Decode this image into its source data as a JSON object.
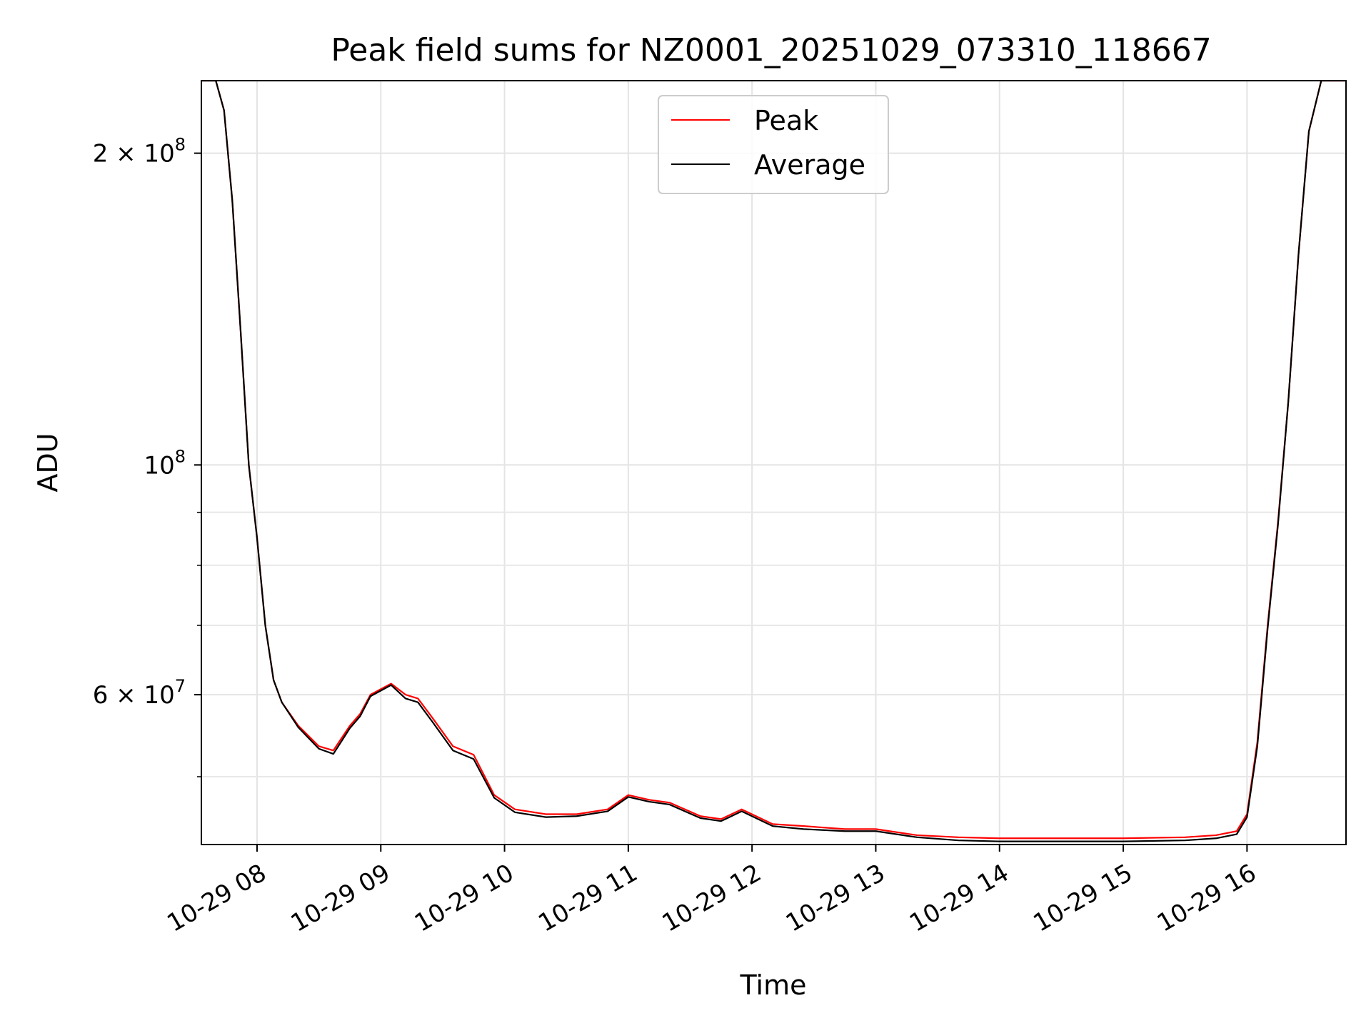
{
  "chart_data": {
    "type": "line",
    "title": "Peak field sums for NZ0001_20251029_073310_118667",
    "xlabel": "Time",
    "ylabel": "ADU",
    "yscale": "log",
    "xlim": [
      "2025-10-29 07:33",
      "2025-10-29 16:48"
    ],
    "ylim": [
      43000000,
      235000000
    ],
    "grid": true,
    "legend": "upper center",
    "x_ticks": [
      {
        "value": "2025-10-29 08:00",
        "label": "10-29 08"
      },
      {
        "value": "2025-10-29 09:00",
        "label": "10-29 09"
      },
      {
        "value": "2025-10-29 10:00",
        "label": "10-29 10"
      },
      {
        "value": "2025-10-29 11:00",
        "label": "10-29 11"
      },
      {
        "value": "2025-10-29 12:00",
        "label": "10-29 12"
      },
      {
        "value": "2025-10-29 13:00",
        "label": "10-29 13"
      },
      {
        "value": "2025-10-29 14:00",
        "label": "10-29 14"
      },
      {
        "value": "2025-10-29 15:00",
        "label": "10-29 15"
      },
      {
        "value": "2025-10-29 16:00",
        "label": "10-29 16"
      }
    ],
    "y_ticks": [
      {
        "value": 60000000,
        "label": "6 × 10",
        "exp": "7"
      },
      {
        "value": 100000000,
        "label": "10",
        "exp": "8"
      },
      {
        "value": 200000000,
        "label": "2 × 10",
        "exp": "8"
      }
    ],
    "y_minor_ticks": [
      50000000,
      70000000,
      80000000,
      90000000
    ],
    "x": [
      "2025-10-29 07:33",
      "2025-10-29 07:40",
      "2025-10-29 07:44",
      "2025-10-29 07:48",
      "2025-10-29 07:52",
      "2025-10-29 07:56",
      "2025-10-29 08:00",
      "2025-10-29 08:04",
      "2025-10-29 08:08",
      "2025-10-29 08:12",
      "2025-10-29 08:20",
      "2025-10-29 08:30",
      "2025-10-29 08:37",
      "2025-10-29 08:45",
      "2025-10-29 08:50",
      "2025-10-29 08:55",
      "2025-10-29 09:05",
      "2025-10-29 09:12",
      "2025-10-29 09:18",
      "2025-10-29 09:25",
      "2025-10-29 09:35",
      "2025-10-29 09:45",
      "2025-10-29 09:55",
      "2025-10-29 10:05",
      "2025-10-29 10:20",
      "2025-10-29 10:35",
      "2025-10-29 10:50",
      "2025-10-29 11:00",
      "2025-10-29 11:10",
      "2025-10-29 11:20",
      "2025-10-29 11:35",
      "2025-10-29 11:45",
      "2025-10-29 11:55",
      "2025-10-29 12:10",
      "2025-10-29 12:25",
      "2025-10-29 12:45",
      "2025-10-29 13:00",
      "2025-10-29 13:20",
      "2025-10-29 13:40",
      "2025-10-29 14:00",
      "2025-10-29 14:30",
      "2025-10-29 15:00",
      "2025-10-29 15:30",
      "2025-10-29 15:45",
      "2025-10-29 15:55",
      "2025-10-29 16:00",
      "2025-10-29 16:05",
      "2025-10-29 16:10",
      "2025-10-29 16:15",
      "2025-10-29 16:20",
      "2025-10-29 16:25",
      "2025-10-29 16:30",
      "2025-10-29 16:36",
      "2025-10-29 16:48"
    ],
    "series": [
      {
        "name": "Peak",
        "color": "#ff0000",
        "values": [
          235000000,
          235000000,
          220000000,
          180000000,
          135000000,
          100000000,
          85000000,
          70000000,
          62000000,
          59000000,
          56000000,
          53500000,
          53000000,
          56000000,
          57500000,
          60000000,
          61500000,
          60000000,
          59500000,
          57000000,
          53500000,
          52500000,
          48000000,
          46500000,
          46000000,
          46000000,
          46500000,
          48000000,
          47500000,
          47200000,
          45800000,
          45500000,
          46500000,
          45000000,
          44800000,
          44500000,
          44500000,
          43900000,
          43700000,
          43600000,
          43600000,
          43600000,
          43700000,
          43900000,
          44300000,
          46000000,
          54000000,
          70000000,
          88000000,
          115000000,
          160000000,
          210000000,
          235000000,
          235000000
        ]
      },
      {
        "name": "Average",
        "color": "#000000",
        "values": [
          235000000,
          235000000,
          220000000,
          180000000,
          135000000,
          100000000,
          85000000,
          70000000,
          62000000,
          59000000,
          55800000,
          53200000,
          52600000,
          55700000,
          57200000,
          59800000,
          61300000,
          59500000,
          59000000,
          56500000,
          53000000,
          52000000,
          47700000,
          46200000,
          45700000,
          45800000,
          46300000,
          47800000,
          47300000,
          47000000,
          45600000,
          45300000,
          46300000,
          44800000,
          44500000,
          44300000,
          44300000,
          43700000,
          43400000,
          43300000,
          43300000,
          43300000,
          43400000,
          43600000,
          44000000,
          45700000,
          53500000,
          69500000,
          87500000,
          115000000,
          160000000,
          210000000,
          235000000,
          235000000
        ]
      }
    ]
  }
}
